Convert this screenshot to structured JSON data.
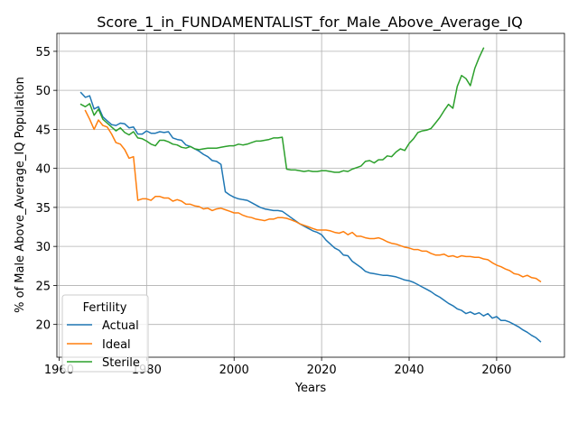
{
  "chart_data": {
    "type": "line",
    "title": "Score_1_in_FUNDAMENTALIST_for_Male_Above_Average_IQ",
    "xlabel": "Years",
    "ylabel": "% of Male Above_Average_IQ Population",
    "xlim": [
      1959.5,
      2075.5
    ],
    "ylim": [
      15.8,
      57.3
    ],
    "xticks": [
      1960,
      1980,
      2000,
      2020,
      2040,
      2060
    ],
    "yticks": [
      20,
      25,
      30,
      35,
      40,
      45,
      50,
      55
    ],
    "grid": true,
    "legend": {
      "title": "Fertility",
      "placement": "lower-left"
    },
    "series": [
      {
        "name": "Actual",
        "color": "#1f77b4",
        "x": [
          1965,
          1966,
          1967,
          1968,
          1969,
          1970,
          1971,
          1972,
          1973,
          1974,
          1975,
          1976,
          1977,
          1978,
          1979,
          1980,
          1981,
          1982,
          1983,
          1984,
          1985,
          1986,
          1987,
          1988,
          1989,
          1990,
          1991,
          1992,
          1993,
          1994,
          1995,
          1996,
          1997,
          1998,
          1999,
          2000,
          2001,
          2002,
          2003,
          2004,
          2005,
          2006,
          2007,
          2008,
          2009,
          2010,
          2011,
          2012,
          2013,
          2014,
          2015,
          2016,
          2017,
          2018,
          2019,
          2020,
          2021,
          2022,
          2023,
          2024,
          2025,
          2026,
          2027,
          2028,
          2029,
          2030,
          2031,
          2032,
          2033,
          2034,
          2035,
          2036,
          2037,
          2038,
          2039,
          2040,
          2041,
          2042,
          2043,
          2044,
          2045,
          2046,
          2047,
          2048,
          2049,
          2050,
          2051,
          2052,
          2053,
          2054,
          2055,
          2056,
          2057,
          2058,
          2059,
          2060,
          2061,
          2062,
          2063,
          2064,
          2065,
          2066,
          2067,
          2068,
          2069,
          2070
        ],
        "values": [
          49.7,
          49.1,
          49.3,
          47.6,
          47.9,
          46.6,
          46.1,
          45.6,
          45.5,
          45.8,
          45.7,
          45.2,
          45.3,
          44.4,
          44.4,
          44.8,
          44.5,
          44.5,
          44.7,
          44.6,
          44.7,
          43.9,
          43.7,
          43.6,
          43.0,
          42.8,
          42.5,
          42.2,
          41.8,
          41.5,
          41.0,
          40.9,
          40.5,
          37.0,
          36.6,
          36.3,
          36.1,
          36.0,
          35.9,
          35.6,
          35.3,
          35.0,
          34.8,
          34.7,
          34.6,
          34.6,
          34.5,
          34.1,
          33.7,
          33.3,
          32.9,
          32.6,
          32.3,
          32.0,
          31.8,
          31.5,
          30.8,
          30.3,
          29.8,
          29.5,
          28.9,
          28.8,
          28.1,
          27.7,
          27.3,
          26.8,
          26.6,
          26.5,
          26.4,
          26.3,
          26.3,
          26.2,
          26.1,
          25.9,
          25.7,
          25.6,
          25.4,
          25.1,
          24.8,
          24.5,
          24.2,
          23.8,
          23.5,
          23.1,
          22.7,
          22.4,
          22.0,
          21.8,
          21.4,
          21.6,
          21.3,
          21.5,
          21.1,
          21.4,
          20.8,
          21.0,
          20.5,
          20.5,
          20.3,
          20.0,
          19.7,
          19.3,
          19.0,
          18.6,
          18.3,
          17.8
        ]
      },
      {
        "name": "Ideal",
        "color": "#ff7f0e",
        "x": [
          1966,
          1967,
          1968,
          1969,
          1970,
          1971,
          1972,
          1973,
          1974,
          1975,
          1976,
          1977,
          1978,
          1979,
          1980,
          1981,
          1982,
          1983,
          1984,
          1985,
          1986,
          1987,
          1988,
          1989,
          1990,
          1991,
          1992,
          1993,
          1994,
          1995,
          1996,
          1997,
          1998,
          1999,
          2000,
          2001,
          2002,
          2003,
          2004,
          2005,
          2006,
          2007,
          2008,
          2009,
          2010,
          2011,
          2012,
          2013,
          2014,
          2015,
          2016,
          2017,
          2018,
          2019,
          2020,
          2021,
          2022,
          2023,
          2024,
          2025,
          2026,
          2027,
          2028,
          2029,
          2030,
          2031,
          2032,
          2033,
          2034,
          2035,
          2036,
          2037,
          2038,
          2039,
          2040,
          2041,
          2042,
          2043,
          2044,
          2045,
          2046,
          2047,
          2048,
          2049,
          2050,
          2051,
          2052,
          2053,
          2054,
          2055,
          2056,
          2057,
          2058,
          2059,
          2060,
          2061,
          2062,
          2063,
          2064,
          2065,
          2066,
          2067,
          2068,
          2069,
          2070
        ],
        "values": [
          47.4,
          46.3,
          45.0,
          46.2,
          45.5,
          45.3,
          44.4,
          43.3,
          43.1,
          42.4,
          41.3,
          41.5,
          35.9,
          36.1,
          36.1,
          35.9,
          36.4,
          36.4,
          36.2,
          36.2,
          35.8,
          36.0,
          35.8,
          35.4,
          35.4,
          35.2,
          35.1,
          34.8,
          34.9,
          34.6,
          34.8,
          34.9,
          34.7,
          34.5,
          34.3,
          34.3,
          34.0,
          33.8,
          33.7,
          33.5,
          33.4,
          33.3,
          33.5,
          33.5,
          33.7,
          33.7,
          33.6,
          33.4,
          33.2,
          32.9,
          32.7,
          32.5,
          32.3,
          32.1,
          32.1,
          32.1,
          32.0,
          31.8,
          31.7,
          31.9,
          31.5,
          31.8,
          31.3,
          31.3,
          31.1,
          31.0,
          31.0,
          31.1,
          30.9,
          30.6,
          30.4,
          30.3,
          30.1,
          29.9,
          29.8,
          29.6,
          29.6,
          29.4,
          29.4,
          29.1,
          28.9,
          28.9,
          29.0,
          28.7,
          28.8,
          28.6,
          28.8,
          28.7,
          28.7,
          28.6,
          28.6,
          28.4,
          28.3,
          27.9,
          27.6,
          27.4,
          27.1,
          26.9,
          26.5,
          26.4,
          26.1,
          26.3,
          26.0,
          25.9,
          25.5
        ]
      },
      {
        "name": "Sterile",
        "color": "#2ca02c",
        "x": [
          1965,
          1966,
          1967,
          1968,
          1969,
          1970,
          1971,
          1972,
          1973,
          1974,
          1975,
          1976,
          1977,
          1978,
          1979,
          1980,
          1981,
          1982,
          1983,
          1984,
          1985,
          1986,
          1987,
          1988,
          1989,
          1990,
          1991,
          1992,
          1993,
          1994,
          1995,
          1996,
          1997,
          1998,
          1999,
          2000,
          2001,
          2002,
          2003,
          2004,
          2005,
          2006,
          2007,
          2008,
          2009,
          2010,
          2011,
          2012,
          2013,
          2014,
          2015,
          2016,
          2017,
          2018,
          2019,
          2020,
          2021,
          2022,
          2023,
          2024,
          2025,
          2026,
          2027,
          2028,
          2029,
          2030,
          2031,
          2032,
          2033,
          2034,
          2035,
          2036,
          2037,
          2038,
          2039,
          2040,
          2041,
          2042,
          2043,
          2044,
          2045,
          2046,
          2047,
          2048,
          2049,
          2050,
          2051,
          2052,
          2053,
          2054,
          2055,
          2056,
          2057
        ],
        "values": [
          48.2,
          47.9,
          48.3,
          46.8,
          47.6,
          46.3,
          45.8,
          45.3,
          44.8,
          45.2,
          44.6,
          44.3,
          44.7,
          43.9,
          43.8,
          43.5,
          43.1,
          42.9,
          43.6,
          43.6,
          43.4,
          43.1,
          43.0,
          42.7,
          42.6,
          42.8,
          42.5,
          42.4,
          42.5,
          42.6,
          42.6,
          42.6,
          42.7,
          42.8,
          42.9,
          42.9,
          43.1,
          43.0,
          43.1,
          43.3,
          43.5,
          43.5,
          43.6,
          43.7,
          43.9,
          43.9,
          44.0,
          39.9,
          39.8,
          39.8,
          39.7,
          39.6,
          39.7,
          39.6,
          39.6,
          39.7,
          39.7,
          39.6,
          39.5,
          39.5,
          39.7,
          39.6,
          39.9,
          40.1,
          40.3,
          40.9,
          41.0,
          40.7,
          41.1,
          41.1,
          41.6,
          41.5,
          42.1,
          42.5,
          42.3,
          43.2,
          43.8,
          44.6,
          44.8,
          44.9,
          45.1,
          45.8,
          46.5,
          47.4,
          48.2,
          47.7,
          50.5,
          51.9,
          51.5,
          50.6,
          52.8,
          54.2,
          55.4
        ]
      }
    ]
  }
}
